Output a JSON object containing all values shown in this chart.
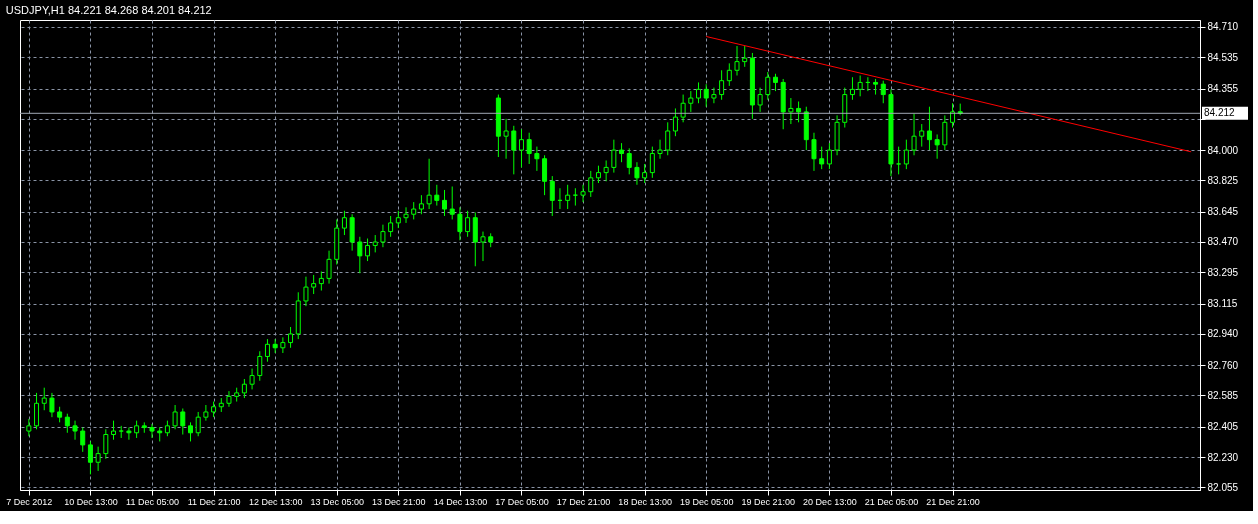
{
  "chart_data": {
    "type": "candlestick",
    "title": "USDJPY,H1 84.221 84.268 84.201 84.212",
    "categories": [
      "7 Dec 2012",
      null,
      null,
      null,
      null,
      null,
      null,
      null,
      "10 Dec 13:00",
      null,
      null,
      null,
      null,
      null,
      null,
      null,
      "11 Dec 05:00",
      null,
      null,
      null,
      null,
      null,
      null,
      null,
      "11 Dec 21:00",
      null,
      null,
      null,
      null,
      null,
      null,
      null,
      "12 Dec 13:00",
      null,
      null,
      null,
      null,
      null,
      null,
      null,
      "13 Dec 05:00",
      null,
      null,
      null,
      null,
      null,
      null,
      null,
      "13 Dec 21:00",
      null,
      null,
      null,
      null,
      null,
      null,
      null,
      "14 Dec 13:00",
      null,
      null,
      null,
      null,
      null,
      null,
      null,
      "17 Dec 05:00",
      null,
      null,
      null,
      null,
      null,
      null,
      null,
      "17 Dec 21:00",
      null,
      null,
      null,
      null,
      null,
      null,
      null,
      "18 Dec 13:00",
      null,
      null,
      null,
      null,
      null,
      null,
      null,
      "19 Dec 05:00",
      null,
      null,
      null,
      null,
      null,
      null,
      null,
      "19 Dec 21:00",
      null,
      null,
      null,
      null,
      null,
      null,
      null,
      "20 Dec 13:00",
      null,
      null,
      null,
      null,
      null,
      null,
      null,
      "21 Dec 05:00",
      null,
      null,
      null,
      null,
      null,
      null,
      null,
      "21 Dec 21:00",
      null,
      null,
      null,
      null,
      null,
      null,
      null,
      null,
      null,
      null,
      null,
      null,
      null,
      null,
      null,
      null,
      null,
      null,
      null,
      null,
      null,
      null,
      null,
      null,
      null,
      null,
      null,
      null,
      null,
      null,
      null
    ],
    "ylim": [
      82.04,
      84.75
    ],
    "yticks": [
      {
        "value": 84.71,
        "label": "84.710"
      },
      84.535,
      84.355,
      {
        "value": 84.18,
        "label": null
      },
      {
        "value": 84.0,
        "label": "84.000"
      },
      83.825,
      83.645,
      {
        "value": 83.47,
        "label": "83.470"
      },
      83.295,
      83.115,
      {
        "value": 82.94,
        "label": "82.940"
      },
      {
        "value": 82.76,
        "label": "82.760"
      },
      82.585,
      82.405,
      {
        "value": 82.23,
        "label": "82.230"
      },
      82.055
    ],
    "grid": true,
    "ref_lines": [
      {
        "axis": "y",
        "value": 84.212,
        "label": "84.212",
        "color": "#a0a8b4"
      }
    ],
    "series": [
      {
        "color": "#00ff00",
        "ohlc": [
          [
            82.38,
            82.45,
            82.35,
            82.41
          ],
          [
            82.41,
            82.6,
            82.39,
            82.54
          ],
          [
            82.54,
            82.63,
            82.5,
            82.57
          ],
          [
            82.57,
            82.6,
            82.46,
            82.49
          ],
          [
            82.49,
            82.52,
            82.43,
            82.46
          ],
          [
            82.46,
            82.48,
            82.37,
            82.41
          ],
          [
            82.41,
            82.44,
            82.33,
            82.38
          ],
          [
            82.38,
            82.4,
            82.26,
            82.3
          ],
          [
            82.3,
            82.32,
            82.13,
            82.2
          ],
          [
            82.2,
            82.29,
            82.15,
            82.25
          ],
          [
            82.25,
            82.39,
            82.22,
            82.36
          ],
          [
            82.36,
            82.44,
            82.33,
            82.38
          ],
          [
            82.38,
            82.41,
            82.34,
            82.38
          ],
          [
            82.38,
            82.4,
            82.33,
            82.37
          ],
          [
            82.37,
            82.44,
            82.34,
            82.41
          ],
          [
            82.41,
            82.43,
            82.37,
            82.4
          ],
          [
            82.4,
            82.42,
            82.34,
            82.38
          ],
          [
            82.38,
            82.4,
            82.32,
            82.37
          ],
          [
            82.37,
            82.44,
            82.35,
            82.41
          ],
          [
            82.41,
            82.53,
            82.39,
            82.49
          ],
          [
            82.49,
            82.51,
            82.36,
            82.41
          ],
          [
            82.41,
            82.43,
            82.32,
            82.37
          ],
          [
            82.37,
            82.49,
            82.35,
            82.46
          ],
          [
            82.46,
            82.53,
            82.44,
            82.49
          ],
          [
            82.49,
            82.55,
            82.46,
            82.52
          ],
          [
            82.52,
            82.57,
            82.49,
            82.54
          ],
          [
            82.54,
            82.61,
            82.52,
            82.58
          ],
          [
            82.58,
            82.63,
            82.55,
            82.6
          ],
          [
            82.6,
            82.68,
            82.57,
            82.65
          ],
          [
            82.65,
            82.74,
            82.62,
            82.7
          ],
          [
            82.7,
            82.84,
            82.67,
            82.81
          ],
          [
            82.81,
            82.91,
            82.78,
            82.88
          ],
          [
            82.88,
            82.91,
            82.83,
            82.86
          ],
          [
            82.86,
            82.92,
            82.83,
            82.89
          ],
          [
            82.89,
            82.98,
            82.86,
            82.94
          ],
          [
            82.94,
            83.18,
            82.91,
            83.13
          ],
          [
            83.13,
            83.27,
            83.1,
            83.21
          ],
          [
            83.21,
            83.28,
            83.17,
            83.23
          ],
          [
            83.23,
            83.3,
            83.19,
            83.26
          ],
          [
            83.26,
            83.42,
            83.23,
            83.37
          ],
          [
            83.37,
            83.6,
            83.34,
            83.55
          ],
          [
            83.55,
            83.65,
            83.51,
            83.61
          ],
          [
            83.61,
            83.63,
            83.42,
            83.47
          ],
          [
            83.47,
            83.5,
            83.29,
            83.39
          ],
          [
            83.39,
            83.49,
            83.36,
            83.45
          ],
          [
            83.45,
            83.51,
            83.41,
            83.47
          ],
          [
            83.47,
            83.57,
            83.44,
            83.53
          ],
          [
            83.53,
            83.62,
            83.5,
            83.58
          ],
          [
            83.58,
            83.65,
            83.55,
            83.61
          ],
          [
            83.61,
            83.67,
            83.58,
            83.63
          ],
          [
            83.63,
            83.7,
            83.6,
            83.66
          ],
          [
            83.66,
            83.74,
            83.63,
            83.69
          ],
          [
            83.69,
            83.95,
            83.66,
            83.74
          ],
          [
            83.74,
            83.8,
            83.68,
            83.71
          ],
          [
            83.71,
            83.77,
            83.62,
            83.66
          ],
          [
            83.66,
            83.79,
            83.6,
            83.63
          ],
          [
            83.63,
            83.67,
            83.48,
            83.53
          ],
          [
            83.53,
            83.65,
            83.5,
            83.61
          ],
          [
            83.61,
            83.64,
            83.33,
            83.47
          ],
          [
            83.47,
            83.53,
            83.36,
            83.5
          ],
          [
            83.5,
            83.52,
            83.44,
            83.47
          ],
          [
            84.3,
            84.32,
            83.96,
            84.08
          ],
          [
            84.08,
            84.18,
            83.95,
            84.11
          ],
          [
            84.11,
            84.14,
            83.86,
            84.0
          ],
          [
            84.0,
            84.12,
            83.9,
            84.06
          ],
          [
            84.06,
            84.1,
            83.92,
            83.98
          ],
          [
            83.98,
            84.02,
            83.88,
            83.95
          ],
          [
            83.95,
            83.97,
            83.74,
            83.82
          ],
          [
            83.82,
            83.85,
            83.62,
            83.71
          ],
          [
            83.71,
            83.78,
            83.66,
            83.71
          ],
          [
            83.71,
            83.8,
            83.66,
            83.74
          ],
          [
            83.74,
            83.78,
            83.68,
            83.74
          ],
          [
            83.74,
            83.8,
            83.7,
            83.76
          ],
          [
            83.76,
            83.88,
            83.73,
            83.84
          ],
          [
            83.84,
            83.91,
            83.81,
            83.87
          ],
          [
            83.87,
            83.94,
            83.82,
            83.9
          ],
          [
            83.9,
            84.06,
            83.87,
            84.0
          ],
          [
            84.0,
            84.04,
            83.93,
            83.98
          ],
          [
            83.98,
            84.01,
            83.86,
            83.9
          ],
          [
            83.9,
            83.93,
            83.8,
            83.84
          ],
          [
            83.84,
            83.92,
            83.81,
            83.87
          ],
          [
            83.87,
            84.02,
            83.84,
            83.98
          ],
          [
            83.98,
            84.06,
            83.95,
            84.0
          ],
          [
            84.0,
            84.16,
            83.97,
            84.11
          ],
          [
            84.11,
            84.24,
            84.08,
            84.19
          ],
          [
            84.19,
            84.32,
            84.16,
            84.27
          ],
          [
            84.27,
            84.34,
            84.22,
            84.3
          ],
          [
            84.3,
            84.39,
            84.27,
            84.35
          ],
          [
            84.35,
            84.38,
            84.25,
            84.3
          ],
          [
            84.3,
            84.36,
            84.27,
            84.32
          ],
          [
            84.32,
            84.46,
            84.29,
            84.4
          ],
          [
            84.4,
            84.5,
            84.37,
            84.46
          ],
          [
            84.46,
            84.6,
            84.43,
            84.51
          ],
          [
            84.51,
            84.6,
            84.48,
            84.53
          ],
          [
            84.53,
            84.56,
            84.18,
            84.26
          ],
          [
            84.26,
            84.36,
            84.22,
            84.32
          ],
          [
            84.32,
            84.45,
            84.29,
            84.42
          ],
          [
            84.42,
            84.44,
            84.34,
            84.39
          ],
          [
            84.39,
            84.41,
            84.12,
            84.22
          ],
          [
            84.22,
            84.3,
            84.15,
            84.24
          ],
          [
            84.24,
            84.28,
            84.16,
            84.22
          ],
          [
            84.22,
            84.25,
            84.0,
            84.06
          ],
          [
            84.06,
            84.1,
            83.88,
            83.95
          ],
          [
            83.95,
            84.02,
            83.89,
            83.92
          ],
          [
            83.92,
            84.04,
            83.89,
            84.0
          ],
          [
            84.0,
            84.2,
            83.97,
            84.16
          ],
          [
            84.16,
            84.36,
            84.13,
            84.32
          ],
          [
            84.32,
            84.42,
            84.29,
            84.35
          ],
          [
            84.35,
            84.43,
            84.31,
            84.39
          ],
          [
            84.39,
            84.42,
            84.34,
            84.39
          ],
          [
            84.39,
            84.41,
            84.32,
            84.38
          ],
          [
            84.38,
            84.4,
            84.27,
            84.32
          ],
          [
            84.32,
            84.35,
            83.85,
            83.92
          ],
          [
            83.92,
            84.02,
            83.86,
            83.92
          ],
          [
            83.92,
            84.06,
            83.89,
            84.0
          ],
          [
            84.0,
            84.21,
            83.97,
            84.08
          ],
          [
            84.08,
            84.15,
            84.02,
            84.11
          ],
          [
            84.11,
            84.25,
            84.0,
            84.06
          ],
          [
            84.06,
            84.09,
            83.95,
            84.03
          ],
          [
            84.03,
            84.2,
            84.0,
            84.16
          ],
          [
            84.16,
            84.27,
            84.13,
            84.22
          ],
          [
            84.221,
            84.268,
            84.201,
            84.212
          ],
          null,
          null,
          null,
          null,
          null,
          null,
          null,
          null,
          null,
          null,
          null,
          null,
          null,
          null,
          null,
          null,
          null,
          null,
          null,
          null,
          null,
          null,
          null,
          null,
          null,
          null,
          null,
          null,
          null,
          null
        ]
      },
      {
        "type": "line",
        "color": "#ff0000",
        "values": [
          null,
          null,
          null,
          null,
          null,
          null,
          null,
          null,
          null,
          null,
          null,
          null,
          null,
          null,
          null,
          null,
          null,
          null,
          null,
          null,
          null,
          null,
          null,
          null,
          null,
          null,
          null,
          null,
          null,
          null,
          null,
          null,
          null,
          null,
          null,
          null,
          null,
          null,
          null,
          null,
          null,
          null,
          null,
          null,
          null,
          null,
          null,
          null,
          null,
          null,
          null,
          null,
          null,
          null,
          null,
          null,
          null,
          null,
          null,
          null,
          null,
          null,
          null,
          null,
          null,
          null,
          null,
          null,
          null,
          null,
          null,
          null,
          null,
          null,
          null,
          null,
          null,
          null,
          null,
          null,
          null,
          null,
          null,
          null,
          null,
          null,
          null,
          null,
          84.655,
          null,
          null,
          null,
          null,
          null,
          null,
          null,
          null,
          null,
          null,
          null,
          null,
          null,
          null,
          null,
          null,
          null,
          null,
          null,
          null,
          null,
          null,
          null,
          null,
          null,
          null,
          null,
          null,
          null,
          null,
          null,
          null,
          null,
          null,
          null,
          null,
          null,
          null,
          null,
          null,
          null,
          null,
          null,
          null,
          null,
          null,
          null,
          null,
          null,
          null,
          null,
          null,
          null,
          null,
          null,
          null,
          null,
          null,
          null,
          null,
          null,
          null,
          83.99
        ]
      }
    ]
  }
}
